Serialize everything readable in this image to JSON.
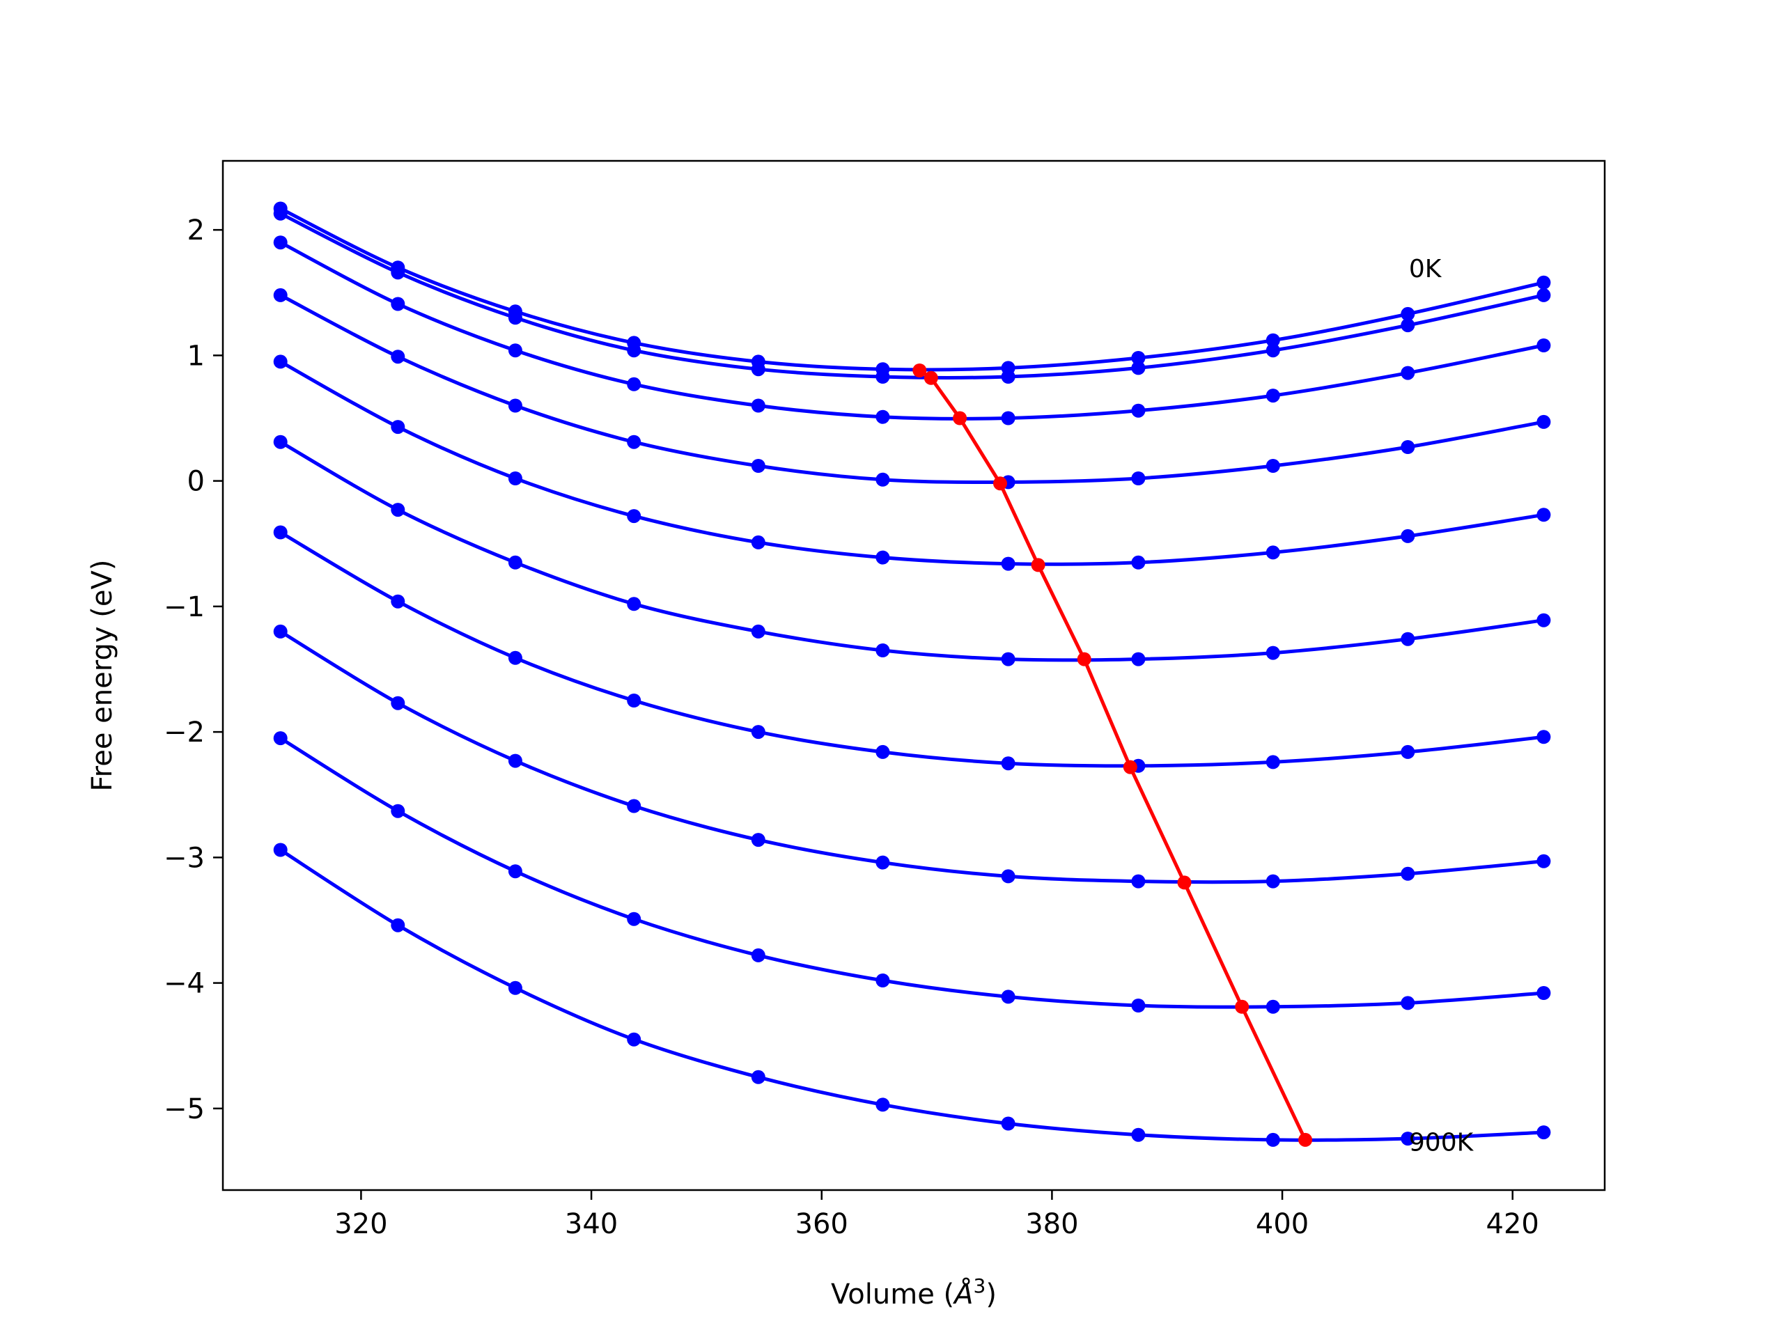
{
  "chart_data": {
    "type": "line",
    "xlabel": "Volume (",
    "xlabel_unit": "Å",
    "xlabel_exp": "3",
    "xlabel_close": ")",
    "ylabel": "Free energy (eV)",
    "xlim": [
      308,
      428
    ],
    "ylim": [
      -5.65,
      2.55
    ],
    "xticks": [
      320,
      340,
      360,
      380,
      400,
      420
    ],
    "xtick_labels": [
      "320",
      "340",
      "360",
      "380",
      "400",
      "420"
    ],
    "yticks": [
      2,
      1,
      0,
      -1,
      -2,
      -3,
      -4,
      -5
    ],
    "ytick_labels": [
      "2",
      "1",
      "0",
      "−1",
      "−2",
      "−3",
      "−4",
      "−5"
    ],
    "grid": false,
    "x": [
      313.0,
      323.2,
      333.4,
      343.7,
      354.5,
      365.3,
      376.2,
      387.5,
      399.2,
      410.9,
      422.7
    ],
    "series": [
      {
        "color": "#0000ff",
        "values": [
          2.17,
          1.7,
          1.35,
          1.1,
          0.95,
          0.89,
          0.9,
          0.98,
          1.12,
          1.33,
          1.58
        ]
      },
      {
        "color": "#0000ff",
        "values": [
          2.13,
          1.66,
          1.3,
          1.04,
          0.89,
          0.83,
          0.83,
          0.9,
          1.04,
          1.24,
          1.48
        ]
      },
      {
        "color": "#0000ff",
        "values": [
          1.9,
          1.41,
          1.04,
          0.77,
          0.6,
          0.51,
          0.5,
          0.56,
          0.68,
          0.86,
          1.08
        ]
      },
      {
        "color": "#0000ff",
        "values": [
          1.48,
          0.99,
          0.6,
          0.31,
          0.12,
          0.01,
          -0.01,
          0.02,
          0.12,
          0.27,
          0.47
        ]
      },
      {
        "color": "#0000ff",
        "values": [
          0.95,
          0.43,
          0.02,
          -0.28,
          -0.49,
          -0.61,
          -0.66,
          -0.65,
          -0.57,
          -0.44,
          -0.27
        ]
      },
      {
        "color": "#0000ff",
        "values": [
          0.31,
          -0.23,
          -0.65,
          -0.98,
          -1.2,
          -1.35,
          -1.42,
          -1.42,
          -1.37,
          -1.26,
          -1.11
        ]
      },
      {
        "color": "#0000ff",
        "values": [
          -0.41,
          -0.96,
          -1.41,
          -1.75,
          -2.0,
          -2.16,
          -2.25,
          -2.27,
          -2.24,
          -2.16,
          -2.04
        ]
      },
      {
        "color": "#0000ff",
        "values": [
          -1.2,
          -1.77,
          -2.23,
          -2.59,
          -2.86,
          -3.04,
          -3.15,
          -3.19,
          -3.19,
          -3.13,
          -3.03
        ]
      },
      {
        "color": "#0000ff",
        "values": [
          -2.05,
          -2.63,
          -3.11,
          -3.49,
          -3.78,
          -3.98,
          -4.11,
          -4.18,
          -4.19,
          -4.16,
          -4.08
        ]
      },
      {
        "color": "#0000ff",
        "values": [
          -2.94,
          -3.54,
          -4.04,
          -4.45,
          -4.75,
          -4.97,
          -5.12,
          -5.21,
          -5.25,
          -5.24,
          -5.19
        ]
      }
    ],
    "minima": {
      "color": "#ff0000",
      "x": [
        368.5,
        369.5,
        372.0,
        375.5,
        378.8,
        382.8,
        386.8,
        391.5,
        396.5,
        402.0
      ],
      "y": [
        0.88,
        0.82,
        0.5,
        -0.02,
        -0.67,
        -1.42,
        -2.28,
        -3.2,
        -4.19,
        -5.25
      ]
    },
    "annotations": [
      {
        "text": "0K",
        "x": 411,
        "y": 1.68
      },
      {
        "text": "900K",
        "x": 411,
        "y": -5.28
      }
    ]
  }
}
